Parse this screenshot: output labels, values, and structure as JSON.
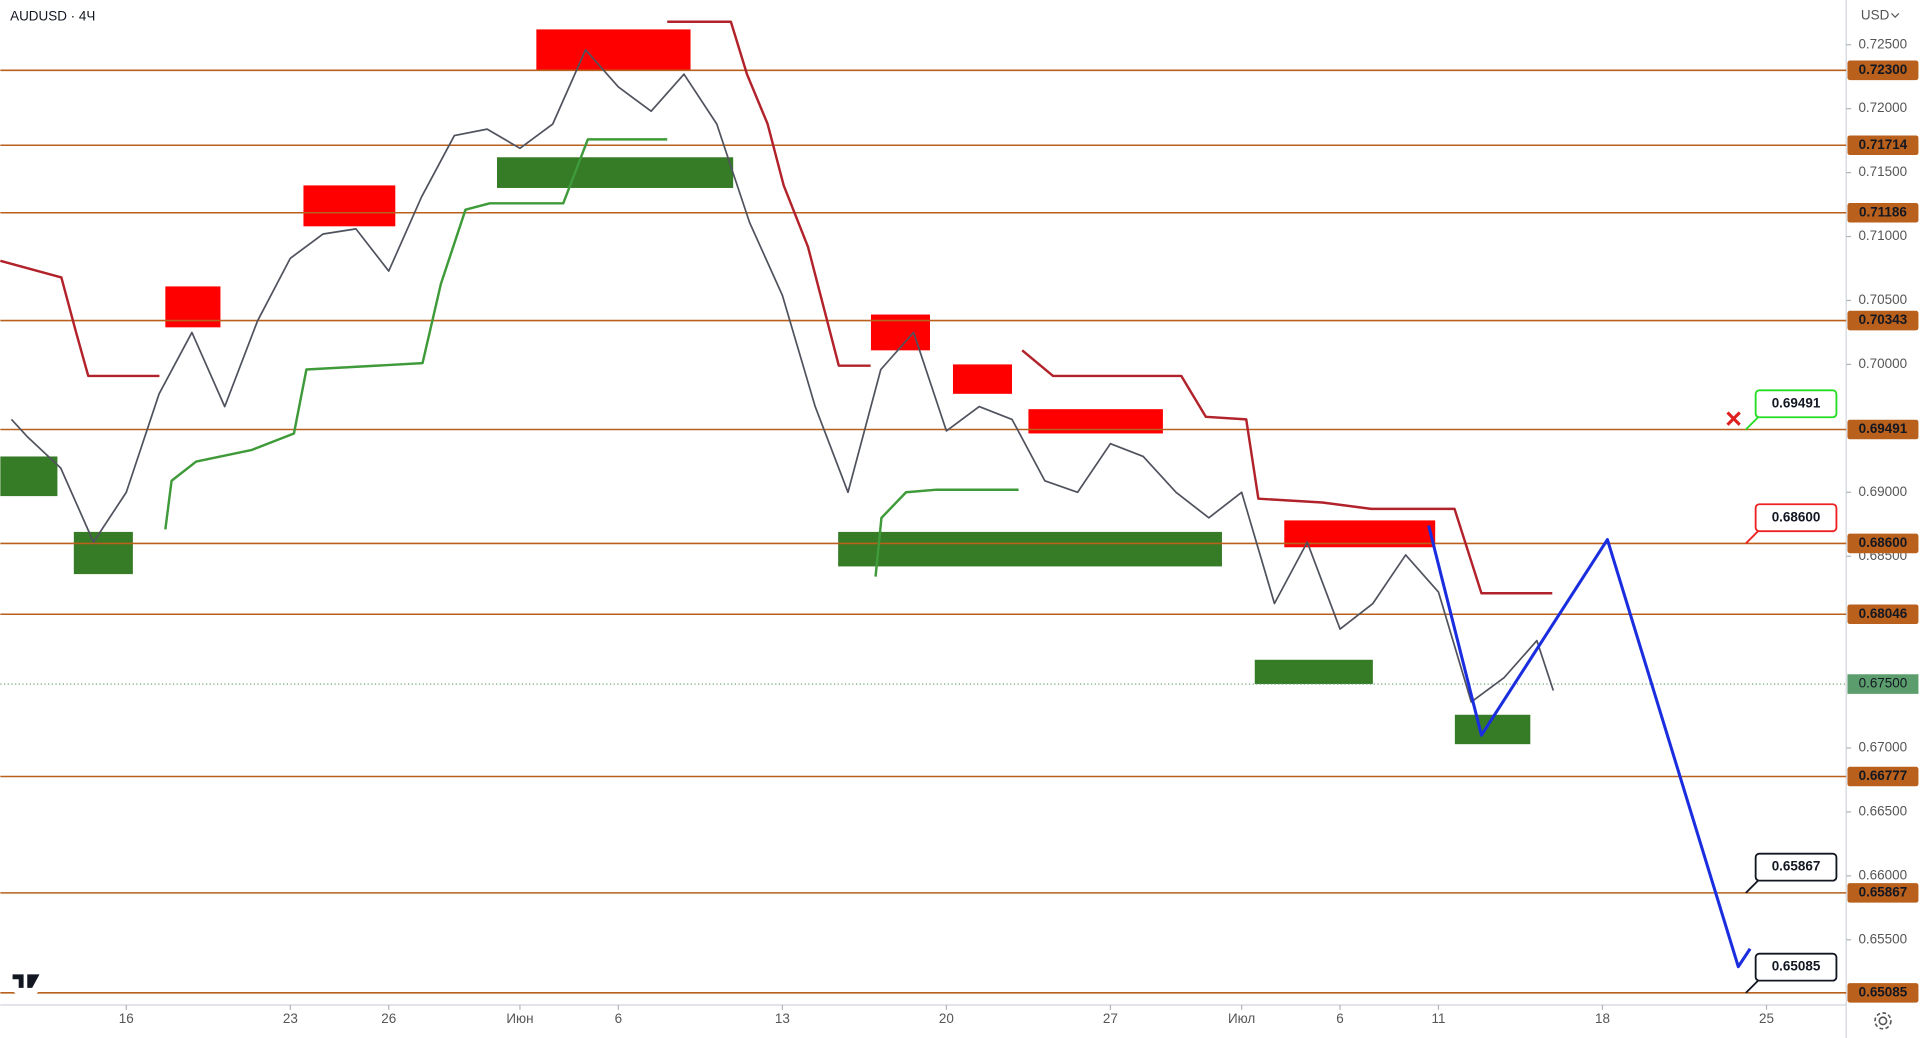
{
  "chart_data": {
    "type": "line",
    "title": "AUDUSD · 4Ч",
    "currency": "USD",
    "color": "#50535e",
    "x": [
      -3.5,
      -3,
      -2,
      -1,
      0,
      1,
      2,
      3,
      4,
      5,
      6,
      7,
      8,
      9,
      10,
      11,
      12,
      13,
      14,
      15,
      16,
      17,
      18,
      19,
      20,
      21,
      22,
      23,
      24,
      25,
      26,
      27,
      28,
      29,
      30,
      31,
      32,
      33,
      34,
      35,
      36,
      37,
      38,
      39,
      40,
      41,
      42,
      43,
      43.5
    ],
    "values": [
      0.6957,
      0.6943,
      0.6919,
      0.6861,
      0.69,
      0.6977,
      0.7025,
      0.6967,
      0.7034,
      0.7083,
      0.7102,
      0.7106,
      0.7073,
      0.7131,
      0.7179,
      0.7184,
      0.7169,
      0.7188,
      0.7246,
      0.7217,
      0.7198,
      0.7227,
      0.7188,
      0.7111,
      0.7054,
      0.6967,
      0.69,
      0.6996,
      0.7025,
      0.6948,
      0.6967,
      0.6957,
      0.6909,
      0.69,
      0.6938,
      0.6928,
      0.69,
      0.688,
      0.69,
      0.6813,
      0.6861,
      0.6793,
      0.6813,
      0.6851,
      0.6822,
      0.6736,
      0.6755,
      0.6784,
      0.6745
    ],
    "xlim": [
      -3.84,
      52.43
    ],
    "ylim": [
      0.65,
      0.7285
    ],
    "xticks": [
      {
        "value": 0,
        "label": "16"
      },
      {
        "value": 5,
        "label": "23"
      },
      {
        "value": 8,
        "label": "26"
      },
      {
        "value": 12,
        "label": "Июн"
      },
      {
        "value": 15,
        "label": "6"
      },
      {
        "value": 20,
        "label": "13"
      },
      {
        "value": 25,
        "label": "20"
      },
      {
        "value": 30,
        "label": "27"
      },
      {
        "value": 34,
        "label": "Июл"
      },
      {
        "value": 37,
        "label": "6"
      },
      {
        "value": 40,
        "label": "11"
      },
      {
        "value": 45,
        "label": "18"
      },
      {
        "value": 50,
        "label": "25"
      }
    ],
    "yticks": [
      {
        "value": 0.725,
        "label": "0.72500"
      },
      {
        "value": 0.72,
        "label": "0.72000"
      },
      {
        "value": 0.715,
        "label": "0.71500"
      },
      {
        "value": 0.71,
        "label": "0.71000"
      },
      {
        "value": 0.705,
        "label": "0.70500"
      },
      {
        "value": 0.7,
        "label": "0.70000"
      },
      {
        "value": 0.69,
        "label": "0.69000"
      },
      {
        "value": 0.685,
        "label": "0.68500"
      },
      {
        "value": 0.67,
        "label": "0.67000"
      },
      {
        "value": 0.665,
        "label": "0.66500"
      },
      {
        "value": 0.66,
        "label": "0.66000"
      },
      {
        "value": 0.655,
        "label": "0.65500"
      }
    ],
    "level_color": "#b8601c",
    "levels": [
      {
        "value": 0.723,
        "label": "0.72300"
      },
      {
        "value": 0.71714,
        "label": "0.71714"
      },
      {
        "value": 0.71186,
        "label": "0.71186"
      },
      {
        "value": 0.70343,
        "label": "0.70343"
      },
      {
        "value": 0.69491,
        "label": "0.69491"
      },
      {
        "value": 0.686,
        "label": "0.68600"
      },
      {
        "value": 0.68046,
        "label": "0.68046"
      },
      {
        "value": 0.66777,
        "label": "0.66777"
      },
      {
        "value": 0.65867,
        "label": "0.65867"
      },
      {
        "value": 0.65085,
        "label": "0.65085"
      }
    ],
    "last_price": {
      "value": 0.675,
      "label": "0.67500",
      "color": "#5b9d6c"
    },
    "zones": [
      {
        "color": "#ff0000",
        "x": [
          12.5,
          17.2
        ],
        "y": [
          0.723,
          0.7262
        ]
      },
      {
        "color": "#ff0000",
        "x": [
          5.4,
          8.2
        ],
        "y": [
          0.7108,
          0.714
        ]
      },
      {
        "color": "#ff0000",
        "x": [
          1.19,
          2.87
        ],
        "y": [
          0.7029,
          0.7061
        ]
      },
      {
        "color": "#ff0000",
        "x": [
          22.7,
          24.5
        ],
        "y": [
          0.7011,
          0.7039
        ]
      },
      {
        "color": "#ff0000",
        "x": [
          25.2,
          27
        ],
        "y": [
          0.6977,
          0.7
        ]
      },
      {
        "color": "#ff0000",
        "x": [
          27.5,
          31.6
        ],
        "y": [
          0.6946,
          0.6965
        ]
      },
      {
        "color": "#ff0000",
        "x": [
          35.3,
          39.9
        ],
        "y": [
          0.6857,
          0.6878
        ]
      },
      {
        "color": "#367b25",
        "x": [
          -3.84,
          -2.1
        ],
        "y": [
          0.6897,
          0.6928
        ]
      },
      {
        "color": "#367b25",
        "x": [
          -1.6,
          0.2
        ],
        "y": [
          0.6836,
          0.6869
        ]
      },
      {
        "color": "#367b25",
        "x": [
          11.3,
          18.5
        ],
        "y": [
          0.7138,
          0.7162
        ]
      },
      {
        "color": "#367b25",
        "x": [
          21.7,
          33.4
        ],
        "y": [
          0.6842,
          0.6869
        ]
      },
      {
        "color": "#367b25",
        "x": [
          34.4,
          38
        ],
        "y": [
          0.675,
          0.6769
        ]
      },
      {
        "color": "#367b25",
        "x": [
          40.5,
          42.8
        ],
        "y": [
          0.6703,
          0.6726
        ]
      }
    ],
    "trend_lines": [
      {
        "color": "#b2222a",
        "x": [
          -3.84,
          -1.98,
          -1.53,
          -1.16,
          1.01
        ],
        "values": [
          0.7081,
          0.7068,
          0.7025,
          0.6991,
          0.6991
        ]
      },
      {
        "color": "#b2222a",
        "x": [
          16.49,
          18.43,
          18.92,
          19.55,
          20.04,
          20.78,
          21.72,
          22.69
        ],
        "values": [
          0.7268,
          0.7268,
          0.7227,
          0.7188,
          0.714,
          0.7092,
          0.6999,
          0.6999
        ]
      },
      {
        "color": "#b2222a",
        "x": [
          27.31,
          28.25,
          32.16,
          32.91,
          34.14,
          34.51,
          36.46,
          37.95,
          40.49,
          41.31,
          43.47
        ],
        "values": [
          0.7011,
          0.6991,
          0.6991,
          0.6959,
          0.6957,
          0.6895,
          0.6892,
          0.6887,
          0.6887,
          0.6821,
          0.6821
        ]
      },
      {
        "color": "#3f9a3a",
        "x": [
          1.19,
          1.38,
          2.13,
          3.81,
          5.11,
          5.49,
          9.03,
          9.59,
          10.34,
          11.08,
          13.32,
          14.07,
          16.49
        ],
        "values": [
          0.6871,
          0.6909,
          0.6924,
          0.6933,
          0.6946,
          0.6996,
          0.7001,
          0.7063,
          0.7121,
          0.7126,
          0.7126,
          0.7176,
          0.7176
        ]
      },
      {
        "color": "#3f9a3a",
        "x": [
          22.84,
          23.02,
          23.77,
          24.7,
          27.2
        ],
        "values": [
          0.6834,
          0.688,
          0.69,
          0.6902,
          0.6902
        ]
      }
    ],
    "projection": {
      "color": "#1a2ee0",
      "x": [
        39.7,
        41.31,
        45.15,
        49.14,
        49.5
      ],
      "values": [
        0.6874,
        0.671,
        0.6863,
        0.6529,
        0.6543
      ]
    },
    "callouts": [
      {
        "value": 0.69491,
        "label": "0.69491",
        "color": "#22dd22"
      },
      {
        "value": 0.686,
        "label": "0.68600",
        "color": "#ee2222"
      },
      {
        "value": 0.65867,
        "label": "0.65867",
        "color": "#131722"
      },
      {
        "value": 0.65085,
        "label": "0.65085",
        "color": "#131722"
      }
    ]
  }
}
